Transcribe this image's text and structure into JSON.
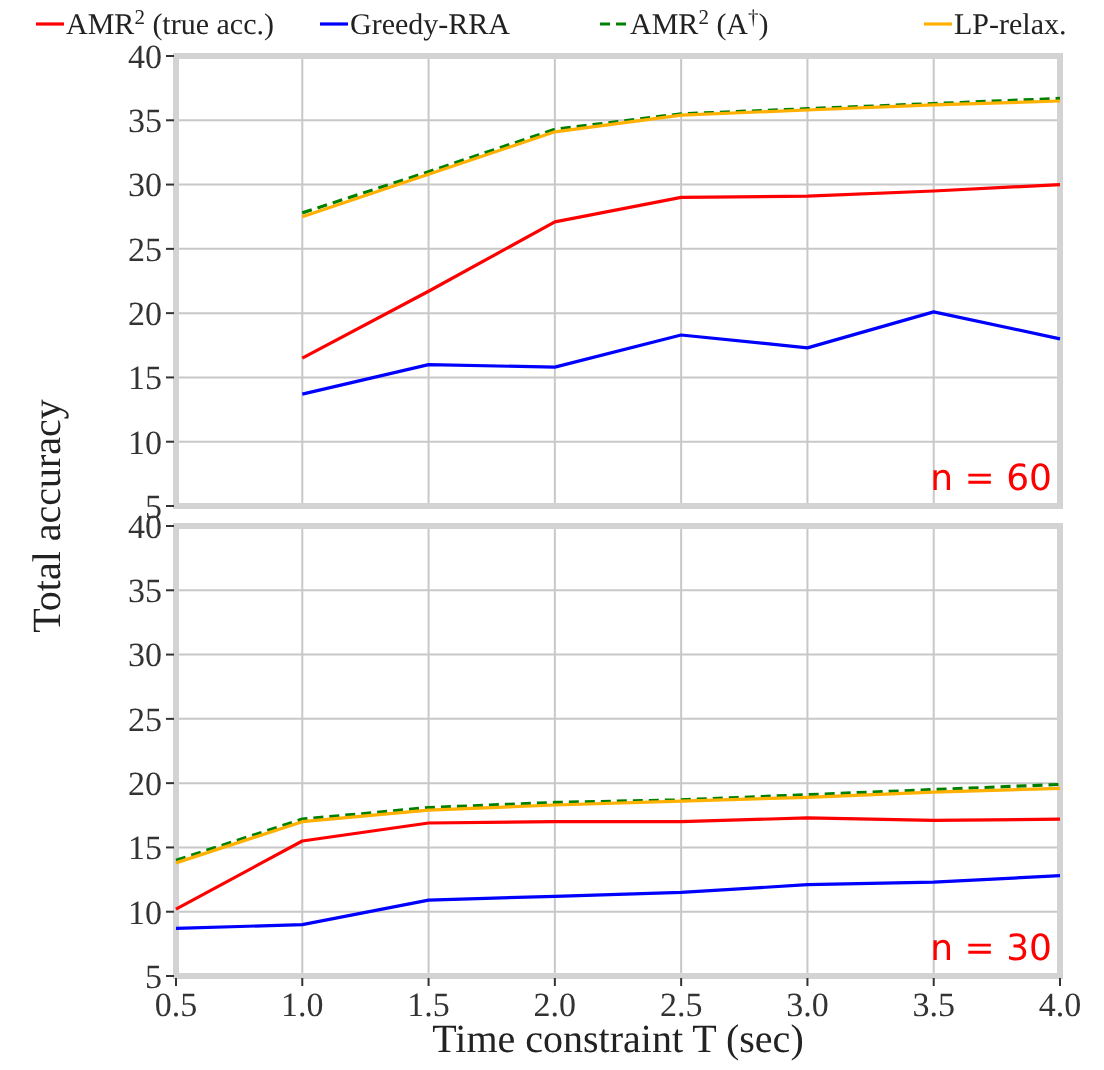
{
  "chart_data": [
    {
      "type": "line",
      "ylabel": "Total accuracy",
      "annotations": [
        "n = 60"
      ],
      "x": [
        1.0,
        1.5,
        2.0,
        2.5,
        3.0,
        3.5,
        4.0
      ],
      "xlim": [
        0.5,
        4.0
      ],
      "xticks": [
        0.5,
        1,
        1.5,
        2,
        2.5,
        3,
        3.5,
        4
      ],
      "ylim": [
        5,
        40
      ],
      "yticks": [
        5,
        10,
        15,
        20,
        25,
        30,
        35,
        40
      ],
      "grid": true,
      "legend": "top",
      "tick_labels": "y",
      "series": [
        {
          "name": "AMR$^{2}$ (true acc.)",
          "color": "#ff0000",
          "line_style": "solid",
          "values": [
            16.5,
            21.7,
            27.1,
            29.0,
            29.1,
            29.5,
            30.0
          ]
        },
        {
          "name": "Greedy-RRA",
          "color": "#0000ff",
          "line_style": "solid",
          "values": [
            13.7,
            16.0,
            15.8,
            18.3,
            17.3,
            20.1,
            18.0
          ]
        },
        {
          "name": "AMR$^{2}$ (A$^{†}$)",
          "color": "#008000",
          "line_style": "dashed",
          "values": [
            27.8,
            31.0,
            34.3,
            35.5,
            35.9,
            36.3,
            36.7
          ]
        },
        {
          "name": "LP-relax.",
          "color": "#ffb000",
          "line_style": "solid",
          "values": [
            27.5,
            30.8,
            34.1,
            35.4,
            35.8,
            36.2,
            36.5
          ]
        }
      ]
    },
    {
      "type": "line",
      "xlabel": "Time constraint T (sec)",
      "annotations": [
        "n = 30"
      ],
      "x": [
        0.5,
        1.0,
        1.5,
        2.0,
        2.5,
        3.0,
        3.5,
        4.0
      ],
      "xlim": [
        0.5,
        4.0
      ],
      "xticks": [
        0.5,
        {
          "value": 1,
          "label": "1.0"
        },
        1.5,
        {
          "value": 2,
          "label": "2.0"
        },
        2.5,
        {
          "value": 3,
          "label": "3.0"
        },
        3.5,
        {
          "value": 4,
          "label": "4.0"
        }
      ],
      "ylim": [
        5,
        40
      ],
      "yticks": [
        5,
        10,
        15,
        20,
        25,
        30,
        35,
        40
      ],
      "grid": true,
      "series": [
        {
          "color": "#ff0000",
          "line_style": "solid",
          "values": [
            10.2,
            15.5,
            16.9,
            17.0,
            17.0,
            17.3,
            17.1,
            17.2
          ]
        },
        {
          "color": "#0000ff",
          "line_style": "solid",
          "values": [
            8.7,
            9.0,
            10.9,
            11.2,
            11.5,
            12.1,
            12.3,
            12.8
          ]
        },
        {
          "color": "#008000",
          "line_style": "dashed",
          "values": [
            14.0,
            17.2,
            18.1,
            18.5,
            18.7,
            19.1,
            19.5,
            19.9
          ]
        },
        {
          "color": "#ffb000",
          "line_style": "solid",
          "values": [
            13.8,
            17.0,
            17.9,
            18.3,
            18.6,
            18.9,
            19.3,
            19.6
          ]
        }
      ]
    }
  ]
}
